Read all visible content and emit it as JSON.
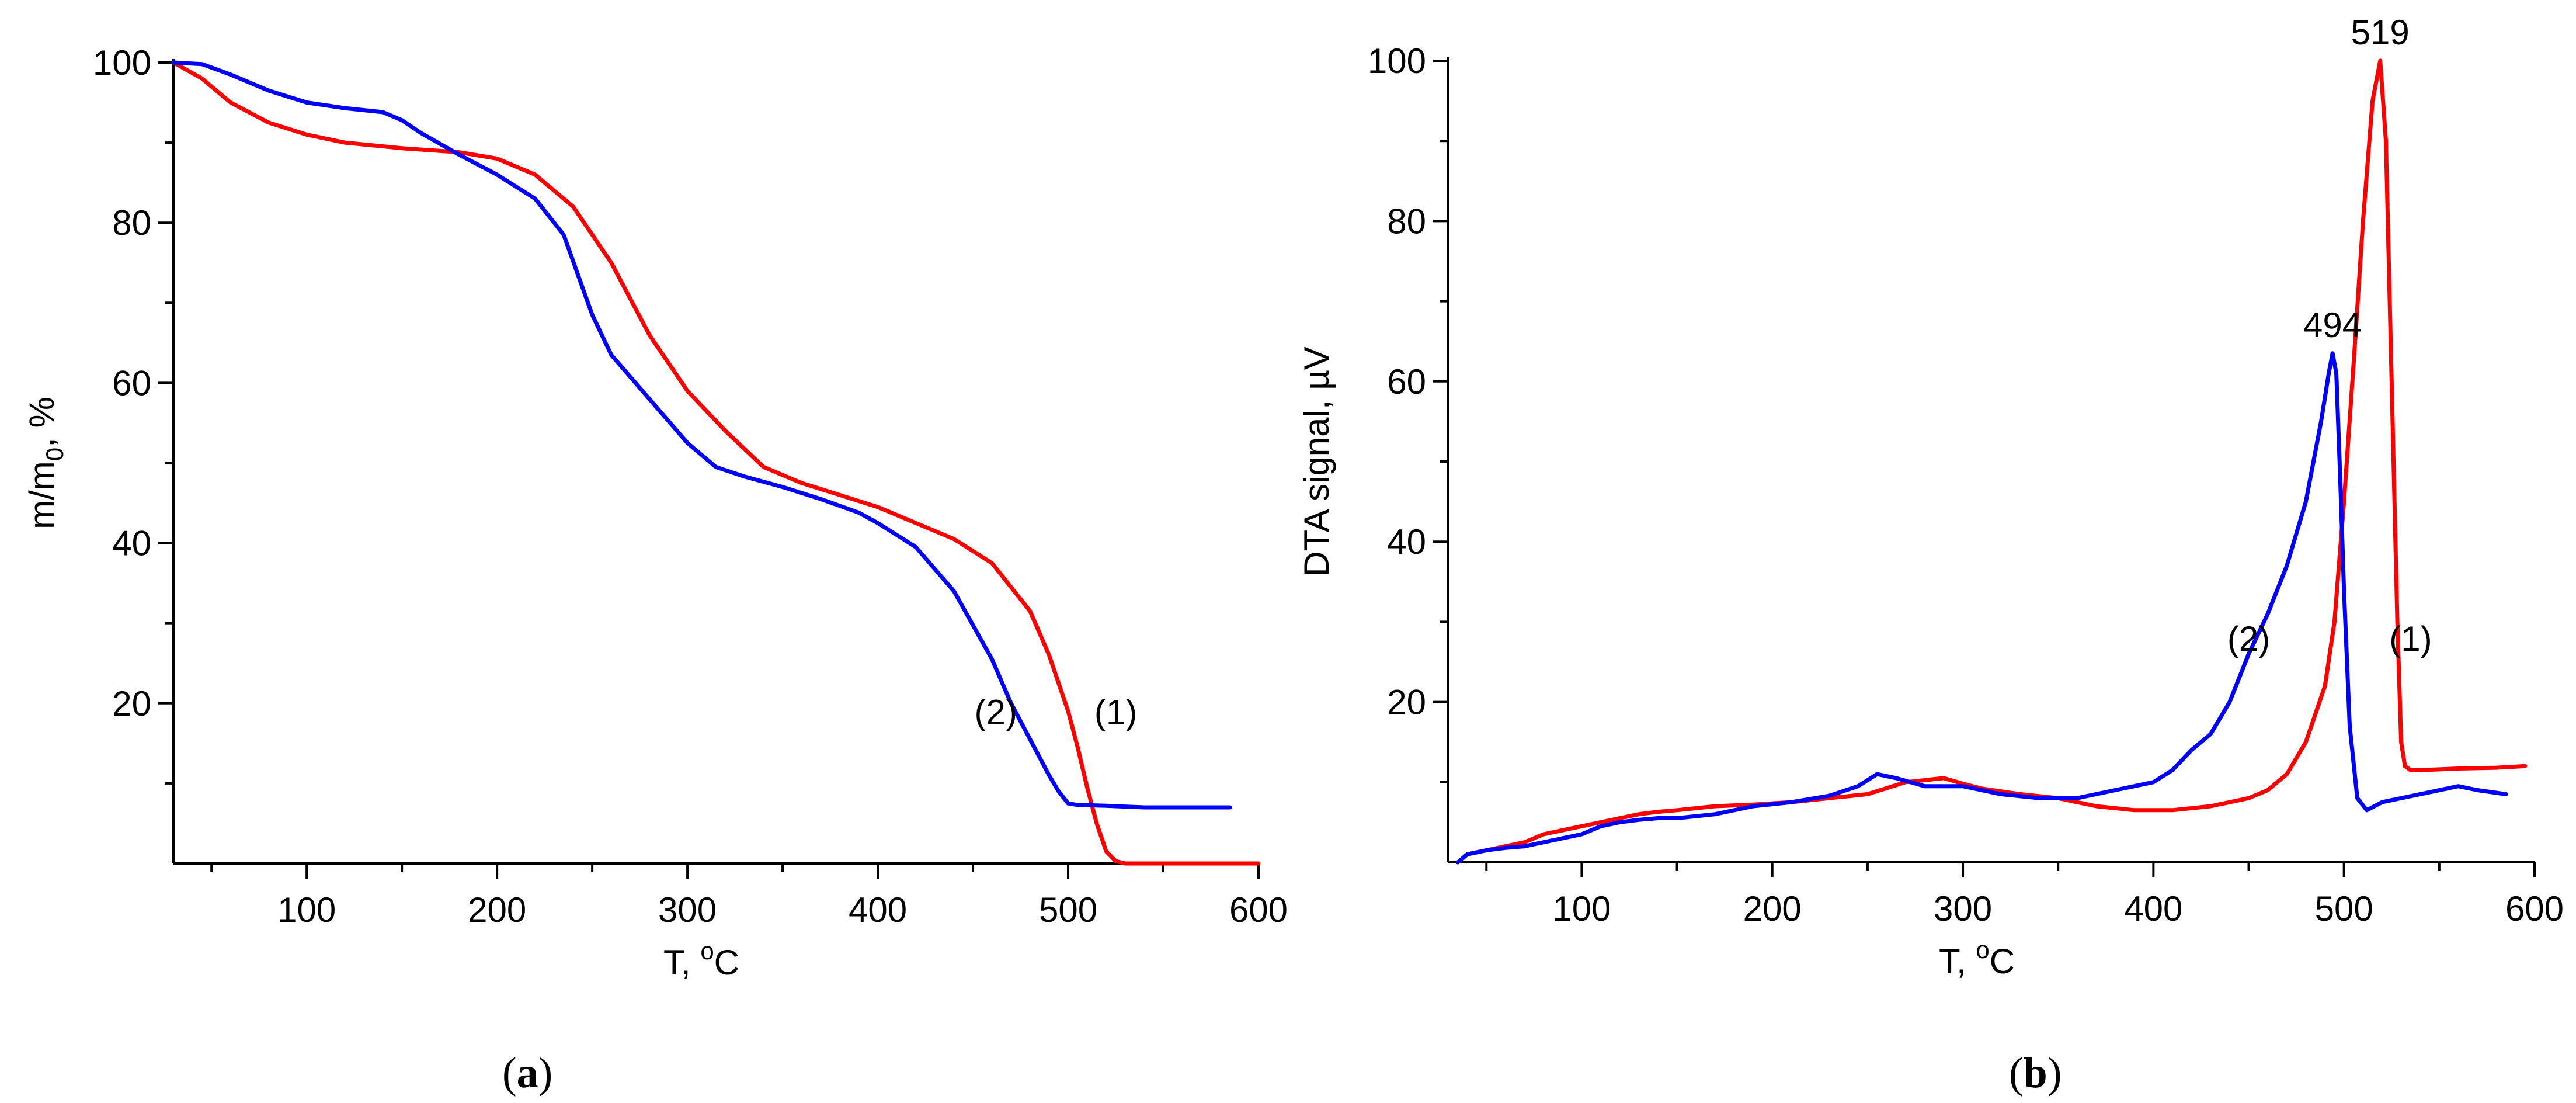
{
  "chart_data": [
    {
      "panel": "a",
      "type": "line",
      "title": "",
      "xlabel": "T, °C",
      "ylabel": "m/m0, %",
      "xlim": [
        30,
        600
      ],
      "ylim": [
        0,
        100
      ],
      "xticks": [
        100,
        200,
        300,
        400,
        500,
        600
      ],
      "yticks": [
        20,
        40,
        60,
        80,
        100
      ],
      "series": [
        {
          "name": "(1)",
          "color": "#ff0000",
          "x": [
            30,
            45,
            60,
            80,
            100,
            120,
            150,
            180,
            200,
            220,
            240,
            260,
            280,
            300,
            320,
            340,
            360,
            380,
            400,
            420,
            440,
            460,
            480,
            490,
            500,
            505,
            510,
            515,
            520,
            525,
            530,
            540,
            560,
            580,
            600
          ],
          "y": [
            100,
            98,
            95,
            92.5,
            91,
            90,
            89.3,
            88.8,
            88,
            86,
            82,
            75,
            66,
            59,
            54,
            49.5,
            47.5,
            46,
            44.5,
            42.5,
            40.5,
            37.5,
            31.5,
            26,
            19,
            14.5,
            9.5,
            5,
            1.5,
            0.3,
            0,
            0,
            0,
            0,
            0
          ]
        },
        {
          "name": "(2)",
          "color": "#0000ff",
          "x": [
            30,
            45,
            60,
            80,
            100,
            120,
            140,
            150,
            160,
            180,
            200,
            220,
            235,
            250,
            260,
            280,
            300,
            315,
            330,
            350,
            370,
            390,
            400,
            420,
            440,
            460,
            470,
            480,
            490,
            495,
            500,
            505,
            520,
            540,
            560,
            585
          ],
          "y": [
            100,
            99.8,
            98.5,
            96.5,
            95,
            94.3,
            93.8,
            92.8,
            91.2,
            88.5,
            86,
            83,
            78.5,
            68.5,
            63.5,
            58,
            52.5,
            49.5,
            48.3,
            47,
            45.5,
            43.8,
            42.5,
            39.5,
            34,
            25.5,
            20,
            15.5,
            11,
            9,
            7.5,
            7.3,
            7.2,
            7,
            7,
            7
          ]
        }
      ],
      "annotations": [
        {
          "text": "(1)",
          "x": 525,
          "y": 19
        },
        {
          "text": "(2)",
          "x": 462,
          "y": 19
        }
      ]
    },
    {
      "panel": "b",
      "type": "line",
      "title": "",
      "xlabel": "T, °C",
      "ylabel": "DTA signal, µV",
      "xlim": [
        30,
        600
      ],
      "ylim": [
        0,
        100
      ],
      "xticks": [
        100,
        200,
        300,
        400,
        500,
        600
      ],
      "yticks": [
        20,
        40,
        60,
        80,
        100
      ],
      "series": [
        {
          "name": "(1)",
          "color": "#ff0000",
          "x": [
            35,
            40,
            50,
            60,
            70,
            80,
            90,
            100,
            110,
            120,
            130,
            140,
            150,
            170,
            190,
            210,
            230,
            250,
            270,
            290,
            300,
            310,
            330,
            350,
            370,
            390,
            410,
            430,
            450,
            460,
            470,
            480,
            490,
            495,
            500,
            505,
            510,
            515,
            519,
            522,
            525,
            528,
            530,
            532,
            535,
            540,
            560,
            580,
            595
          ],
          "y": [
            0,
            1,
            1.5,
            2,
            2.5,
            3.5,
            4,
            4.5,
            5,
            5.5,
            6,
            6.3,
            6.5,
            7,
            7.2,
            7.5,
            8,
            8.5,
            10,
            10.5,
            9.8,
            9.2,
            8.5,
            8,
            7,
            6.5,
            6.5,
            7,
            8,
            9,
            11,
            15,
            22,
            30,
            45,
            62,
            80,
            95,
            100,
            90,
            60,
            30,
            15,
            12,
            11.5,
            11.5,
            11.7,
            11.8,
            12
          ]
        },
        {
          "name": "(2)",
          "color": "#0000ff",
          "x": [
            35,
            40,
            50,
            60,
            70,
            80,
            90,
            100,
            110,
            120,
            130,
            140,
            150,
            170,
            190,
            210,
            230,
            245,
            255,
            265,
            280,
            300,
            320,
            340,
            360,
            380,
            400,
            410,
            420,
            430,
            440,
            450,
            460,
            470,
            480,
            488,
            492,
            494,
            496,
            498,
            500,
            503,
            507,
            512,
            520,
            540,
            560,
            570,
            585
          ],
          "y": [
            0,
            1,
            1.5,
            1.8,
            2,
            2.5,
            3,
            3.5,
            4.5,
            5,
            5.3,
            5.5,
            5.5,
            6,
            7,
            7.5,
            8.3,
            9.5,
            11,
            10.5,
            9.5,
            9.5,
            8.5,
            8,
            8,
            9,
            10,
            11.5,
            14,
            16,
            20,
            26,
            31,
            37,
            45,
            55,
            61,
            63.5,
            61,
            48,
            34,
            17,
            8,
            6.5,
            7.5,
            8.5,
            9.5,
            9,
            8.5
          ]
        }
      ],
      "annotations": [
        {
          "text": "519",
          "x": 519,
          "y": 100
        },
        {
          "text": "494",
          "x": 494,
          "y": 63.5
        },
        {
          "text": "(1)",
          "x": 535,
          "y": 28
        },
        {
          "text": "(2)",
          "x": 450,
          "y": 28
        }
      ]
    }
  ],
  "captions": {
    "a": {
      "open": "(",
      "letter": "a",
      "close": ")"
    },
    "b": {
      "open": "(",
      "letter": "b",
      "close": ")"
    }
  },
  "labels": {
    "a_ylabel_main": "m/m",
    "a_ylabel_sub": "0",
    "a_ylabel_tail": ", %",
    "b_ylabel": "DTA signal, µV",
    "x_prefix": "T, ",
    "x_degree": "o",
    "x_unit": "C"
  }
}
